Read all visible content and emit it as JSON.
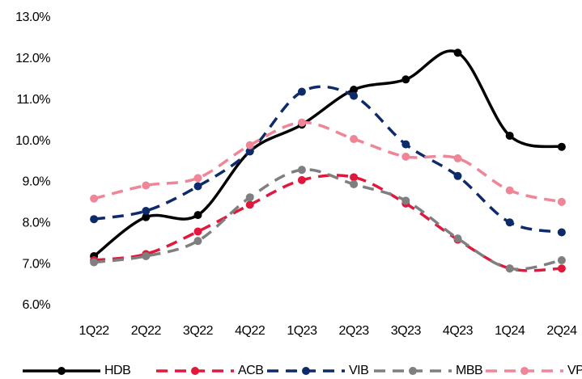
{
  "chart_data": {
    "type": "line",
    "categories": [
      "1Q22",
      "2Q22",
      "3Q22",
      "4Q22",
      "1Q23",
      "2Q23",
      "3Q23",
      "4Q23",
      "1Q24",
      "2Q24"
    ],
    "ylim": [
      6,
      13
    ],
    "yticks": [
      {
        "value": 6,
        "label": "6.0%"
      },
      {
        "value": 7,
        "label": "7.0%"
      },
      {
        "value": 8,
        "label": "8.0%"
      },
      {
        "value": 9,
        "label": "9.0%"
      },
      {
        "value": 10,
        "label": "10.0%"
      },
      {
        "value": 11,
        "label": "11.0%"
      },
      {
        "value": 12,
        "label": "12.0%"
      },
      {
        "value": 13,
        "label": "13.0%"
      }
    ],
    "legend": "bottom",
    "series": [
      {
        "name": "HDB",
        "color": "#000000",
        "dashed": false,
        "values": [
          7.2,
          8.15,
          8.2,
          9.75,
          10.4,
          11.25,
          11.5,
          12.15,
          10.13,
          9.86
        ]
      },
      {
        "name": "ACB",
        "color": "#e0193c",
        "dashed": true,
        "values": [
          7.1,
          7.25,
          7.8,
          8.45,
          9.05,
          9.12,
          8.48,
          7.6,
          6.9,
          6.9
        ]
      },
      {
        "name": "VIB",
        "color": "#0d2a6b",
        "dashed": true,
        "values": [
          8.1,
          8.3,
          8.9,
          9.75,
          11.2,
          11.1,
          9.92,
          9.15,
          8.02,
          7.78
        ]
      },
      {
        "name": "MBB",
        "color": "#7f7f7f",
        "dashed": true,
        "values": [
          7.05,
          7.2,
          7.57,
          8.63,
          9.3,
          8.95,
          8.55,
          7.63,
          6.9,
          7.1
        ]
      },
      {
        "name": "VPB",
        "color": "#f08598",
        "dashed": true,
        "values": [
          8.6,
          8.92,
          9.1,
          9.9,
          10.45,
          10.05,
          9.62,
          9.58,
          8.8,
          8.52
        ]
      }
    ]
  }
}
